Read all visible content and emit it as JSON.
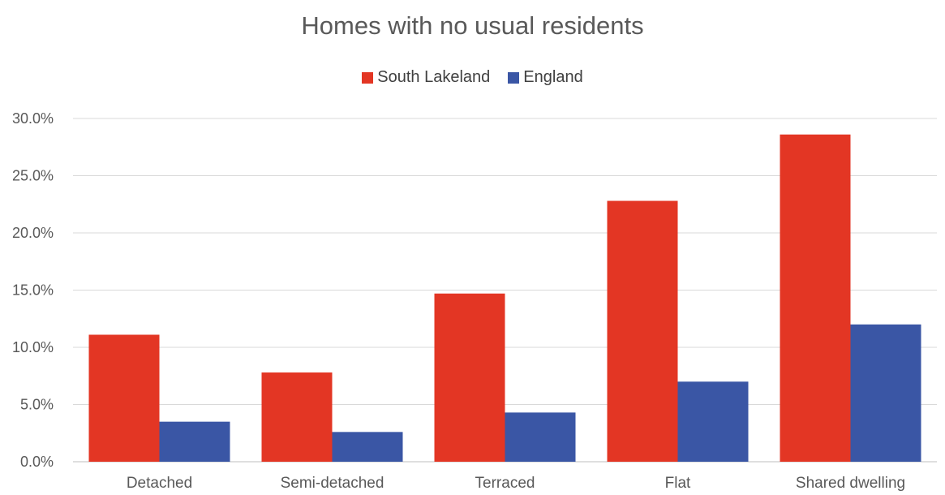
{
  "chart_data": {
    "type": "bar",
    "title": "Homes with no usual residents",
    "categories": [
      "Detached",
      "Semi-detached",
      "Terraced",
      "Flat",
      "Shared dwelling"
    ],
    "series": [
      {
        "name": "South Lakeland",
        "color": "#E33624",
        "values": [
          11.1,
          7.8,
          14.7,
          22.8,
          28.6
        ]
      },
      {
        "name": "England",
        "color": "#3A56A5",
        "values": [
          3.5,
          2.6,
          4.3,
          7.0,
          12.0
        ]
      }
    ],
    "ylim": [
      0,
      30
    ],
    "yticks": [
      "0.0%",
      "5.0%",
      "10.0%",
      "15.0%",
      "20.0%",
      "25.0%",
      "30.0%"
    ],
    "y_unit": "percent",
    "grid": true,
    "legend_position": "top"
  }
}
